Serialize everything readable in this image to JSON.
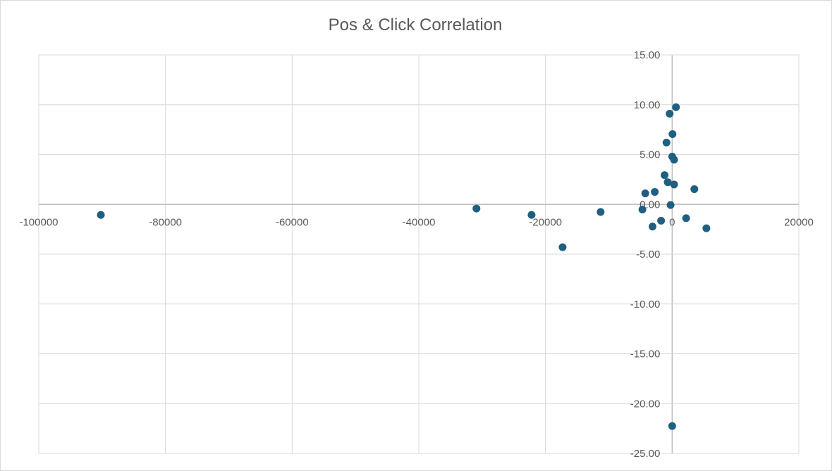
{
  "chart_data": {
    "type": "scatter",
    "title": "Pos & Click Correlation",
    "xlabel": "",
    "ylabel": "",
    "xlim": [
      -100000,
      20000
    ],
    "ylim": [
      -25,
      15
    ],
    "x_ticks": [
      -100000,
      -80000,
      -60000,
      -40000,
      -20000,
      0,
      20000
    ],
    "x_tick_labels": [
      "-100000",
      "-80000",
      "-60000",
      "-40000",
      "-20000",
      "0",
      "20000"
    ],
    "y_ticks": [
      15,
      10,
      5,
      0,
      -5,
      -10,
      -15,
      -20,
      -25
    ],
    "y_tick_labels": [
      "15.00",
      "10.00",
      "5.00",
      "0.00",
      "-5.00",
      "-10.00",
      "-15.00",
      "-20.00",
      "-25.00"
    ],
    "grid": true,
    "marker_color": "#1f5f80",
    "points": [
      {
        "x": 600,
        "y": 9.75
      },
      {
        "x": -400,
        "y": 9.1
      },
      {
        "x": 50,
        "y": 7.05
      },
      {
        "x": -900,
        "y": 6.2
      },
      {
        "x": 0,
        "y": 4.8
      },
      {
        "x": 300,
        "y": 4.48
      },
      {
        "x": -1200,
        "y": 2.93
      },
      {
        "x": -700,
        "y": 2.23
      },
      {
        "x": 300,
        "y": 2.0
      },
      {
        "x": 3500,
        "y": 1.53
      },
      {
        "x": -2750,
        "y": 1.25
      },
      {
        "x": -4250,
        "y": 1.1
      },
      {
        "x": -250,
        "y": -0.07
      },
      {
        "x": -4700,
        "y": -0.52
      },
      {
        "x": -1750,
        "y": -1.64
      },
      {
        "x": 2200,
        "y": -1.39
      },
      {
        "x": -3100,
        "y": -2.23
      },
      {
        "x": 5400,
        "y": -2.4
      },
      {
        "x": -90200,
        "y": -1.06
      },
      {
        "x": -30900,
        "y": -0.42
      },
      {
        "x": -22200,
        "y": -1.06
      },
      {
        "x": -17300,
        "y": -4.3
      },
      {
        "x": -11300,
        "y": -0.77
      },
      {
        "x": 0,
        "y": -22.25
      }
    ]
  }
}
